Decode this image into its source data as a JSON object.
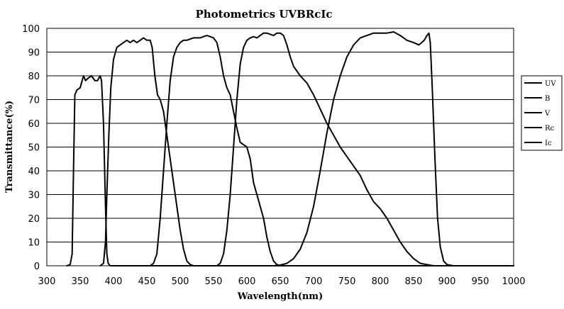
{
  "chart_data": {
    "type": "line",
    "title": "Photometrics UVBRcIc",
    "xlabel": "Wavelength(nm)",
    "ylabel": "Transmittance(%)",
    "xlim": [
      300,
      1000
    ],
    "ylim": [
      0,
      100
    ],
    "x_ticks": [
      300,
      350,
      400,
      450,
      500,
      550,
      600,
      650,
      700,
      750,
      800,
      850,
      900,
      950,
      1000
    ],
    "y_ticks": [
      0,
      10,
      20,
      30,
      40,
      50,
      60,
      70,
      80,
      90,
      100
    ],
    "grid": "horizontal",
    "legend_position": "right",
    "series": [
      {
        "name": "UV",
        "points": [
          [
            330,
            0
          ],
          [
            335,
            0.5
          ],
          [
            338,
            5
          ],
          [
            340,
            40
          ],
          [
            342,
            72
          ],
          [
            345,
            74
          ],
          [
            350,
            75
          ],
          [
            355,
            80
          ],
          [
            358,
            78
          ],
          [
            362,
            79
          ],
          [
            367,
            80
          ],
          [
            372,
            78
          ],
          [
            376,
            78
          ],
          [
            380,
            80
          ],
          [
            382,
            78
          ],
          [
            385,
            60
          ],
          [
            388,
            25
          ],
          [
            390,
            5
          ],
          [
            392,
            1
          ],
          [
            395,
            0
          ],
          [
            1000,
            0
          ]
        ]
      },
      {
        "name": "B",
        "points": [
          [
            380,
            0
          ],
          [
            385,
            1
          ],
          [
            388,
            10
          ],
          [
            390,
            30
          ],
          [
            393,
            55
          ],
          [
            396,
            75
          ],
          [
            400,
            87
          ],
          [
            405,
            92
          ],
          [
            410,
            93
          ],
          [
            415,
            94
          ],
          [
            420,
            95
          ],
          [
            425,
            94
          ],
          [
            430,
            95
          ],
          [
            435,
            94
          ],
          [
            440,
            95
          ],
          [
            445,
            96
          ],
          [
            450,
            95
          ],
          [
            455,
            95
          ],
          [
            458,
            92
          ],
          [
            462,
            80
          ],
          [
            466,
            72
          ],
          [
            470,
            70
          ],
          [
            475,
            65
          ],
          [
            480,
            55
          ],
          [
            485,
            45
          ],
          [
            490,
            35
          ],
          [
            495,
            25
          ],
          [
            500,
            15
          ],
          [
            505,
            7
          ],
          [
            510,
            2
          ],
          [
            515,
            0.5
          ],
          [
            520,
            0
          ],
          [
            1000,
            0
          ]
        ]
      },
      {
        "name": "V",
        "points": [
          [
            455,
            0
          ],
          [
            460,
            1
          ],
          [
            465,
            5
          ],
          [
            470,
            20
          ],
          [
            475,
            40
          ],
          [
            480,
            60
          ],
          [
            485,
            78
          ],
          [
            490,
            88
          ],
          [
            495,
            92
          ],
          [
            500,
            94
          ],
          [
            505,
            95
          ],
          [
            510,
            95
          ],
          [
            515,
            95.5
          ],
          [
            520,
            96
          ],
          [
            525,
            96
          ],
          [
            530,
            96
          ],
          [
            535,
            96.5
          ],
          [
            540,
            97
          ],
          [
            545,
            96.5
          ],
          [
            550,
            96
          ],
          [
            555,
            94
          ],
          [
            560,
            88
          ],
          [
            565,
            80
          ],
          [
            570,
            75
          ],
          [
            575,
            72
          ],
          [
            580,
            65
          ],
          [
            585,
            58
          ],
          [
            590,
            52
          ],
          [
            595,
            51
          ],
          [
            600,
            50
          ],
          [
            605,
            45
          ],
          [
            610,
            35
          ],
          [
            615,
            30
          ],
          [
            620,
            25
          ],
          [
            625,
            20
          ],
          [
            630,
            12
          ],
          [
            635,
            6
          ],
          [
            640,
            2
          ],
          [
            645,
            0.5
          ],
          [
            650,
            0
          ],
          [
            1000,
            0
          ]
        ]
      },
      {
        "name": "Rc",
        "points": [
          [
            555,
            0
          ],
          [
            560,
            1
          ],
          [
            565,
            5
          ],
          [
            570,
            15
          ],
          [
            575,
            30
          ],
          [
            580,
            50
          ],
          [
            585,
            70
          ],
          [
            590,
            85
          ],
          [
            595,
            92
          ],
          [
            600,
            95
          ],
          [
            605,
            96
          ],
          [
            610,
            96.5
          ],
          [
            615,
            96
          ],
          [
            620,
            97
          ],
          [
            625,
            98
          ],
          [
            630,
            98
          ],
          [
            635,
            97.5
          ],
          [
            640,
            97
          ],
          [
            645,
            98
          ],
          [
            650,
            98
          ],
          [
            655,
            97
          ],
          [
            660,
            93
          ],
          [
            665,
            88
          ],
          [
            670,
            84
          ],
          [
            675,
            82
          ],
          [
            680,
            80
          ],
          [
            690,
            77
          ],
          [
            700,
            72
          ],
          [
            710,
            66
          ],
          [
            720,
            60
          ],
          [
            730,
            55
          ],
          [
            740,
            50
          ],
          [
            750,
            46
          ],
          [
            760,
            42
          ],
          [
            770,
            38
          ],
          [
            780,
            32
          ],
          [
            790,
            27
          ],
          [
            800,
            24
          ],
          [
            810,
            20
          ],
          [
            820,
            15
          ],
          [
            830,
            10
          ],
          [
            840,
            6
          ],
          [
            850,
            3
          ],
          [
            860,
            1
          ],
          [
            870,
            0.5
          ],
          [
            880,
            0
          ],
          [
            1000,
            0
          ]
        ]
      },
      {
        "name": "Ic",
        "points": [
          [
            640,
            0
          ],
          [
            650,
            0.3
          ],
          [
            660,
            1
          ],
          [
            670,
            3
          ],
          [
            680,
            7
          ],
          [
            690,
            14
          ],
          [
            700,
            25
          ],
          [
            710,
            40
          ],
          [
            720,
            56
          ],
          [
            730,
            70
          ],
          [
            740,
            80
          ],
          [
            750,
            88
          ],
          [
            760,
            93
          ],
          [
            770,
            96
          ],
          [
            780,
            97
          ],
          [
            790,
            98
          ],
          [
            800,
            98
          ],
          [
            810,
            98
          ],
          [
            820,
            98.5
          ],
          [
            830,
            97
          ],
          [
            840,
            95
          ],
          [
            850,
            94
          ],
          [
            858,
            93
          ],
          [
            862,
            94
          ],
          [
            866,
            95
          ],
          [
            870,
            97
          ],
          [
            873,
            98
          ],
          [
            875,
            94
          ],
          [
            878,
            75
          ],
          [
            882,
            45
          ],
          [
            886,
            20
          ],
          [
            890,
            8
          ],
          [
            895,
            2
          ],
          [
            900,
            0.5
          ],
          [
            910,
            0
          ],
          [
            1000,
            0
          ]
        ]
      }
    ]
  }
}
